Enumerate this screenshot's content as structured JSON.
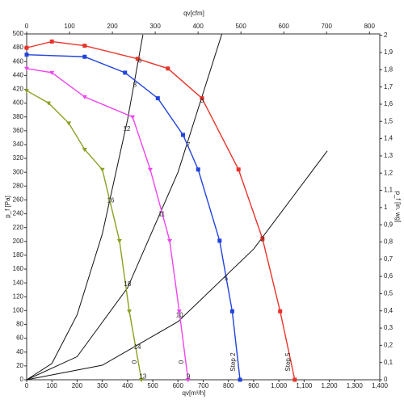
{
  "chart_data": {
    "type": "line",
    "x_label": "qv[m³/h]",
    "x2_label": "qv[cfm]",
    "y_label": "p_f [Pa]",
    "y2_label": "p_f [in. wg]",
    "xlim": [
      0,
      1400
    ],
    "xticks": [
      0,
      100,
      200,
      300,
      400,
      500,
      600,
      700,
      800,
      900,
      {
        "value": 1000,
        "label": "1,000"
      },
      {
        "value": 1100,
        "label": "1,100"
      },
      {
        "value": 1200,
        "label": "1,200"
      },
      {
        "value": 1300,
        "label": "1,300"
      },
      {
        "value": 1400,
        "label": "1,400"
      }
    ],
    "x2lim": [
      0,
      824
    ],
    "x2ticks": [
      0,
      100,
      200,
      300,
      400,
      500,
      600,
      700,
      800
    ],
    "ylim": [
      0,
      500
    ],
    "yticks": [
      0,
      20,
      40,
      60,
      80,
      100,
      120,
      140,
      160,
      180,
      200,
      220,
      240,
      260,
      280,
      300,
      320,
      340,
      360,
      380,
      400,
      420,
      440,
      460,
      480,
      500
    ],
    "y2lim": [
      0,
      2.008
    ],
    "y2ticks": [
      0,
      {
        "value": 0.1,
        "label": "0,1"
      },
      {
        "value": 0.2,
        "label": "0,2"
      },
      {
        "value": 0.3,
        "label": "0,3"
      },
      {
        "value": 0.4,
        "label": "0,4"
      },
      {
        "value": 0.5,
        "label": "0,5"
      },
      {
        "value": 0.6,
        "label": "0,6"
      },
      {
        "value": 0.7,
        "label": "0,7"
      },
      {
        "value": 0.8,
        "label": "0,8"
      },
      {
        "value": 0.9,
        "label": "0,9"
      },
      1,
      {
        "value": 1.1,
        "label": "1,1"
      },
      {
        "value": 1.2,
        "label": "1,2"
      },
      {
        "value": 1.3,
        "label": "1,3"
      },
      {
        "value": 1.4,
        "label": "1,4"
      },
      {
        "value": 1.5,
        "label": "1,5"
      },
      {
        "value": 1.6,
        "label": "1,6"
      },
      {
        "value": 1.7,
        "label": "1,7"
      },
      {
        "value": 1.8,
        "label": "1,8"
      },
      {
        "value": 1.9,
        "label": "1,9"
      },
      2
    ],
    "grid": false,
    "series": [
      {
        "name": "Step 5",
        "color": "#e8342a",
        "marker": "square",
        "x": [
          0,
          100,
          230,
          440,
          560,
          695,
          840,
          935,
          1005,
          1063
        ],
        "values": [
          480,
          489,
          483,
          464,
          450,
          407,
          304,
          204,
          99,
          0
        ]
      },
      {
        "name": "Step 2",
        "color": "#2244dd",
        "marker": "square",
        "x": [
          0,
          230,
          390,
          520,
          620,
          680,
          765,
          815,
          846
        ],
        "values": [
          470,
          467,
          444,
          407,
          354,
          304,
          201,
          99,
          0
        ]
      },
      {
        "name": "0",
        "color": "#ee44ee",
        "marker": "triangle",
        "x": [
          0,
          100,
          230,
          420,
          490,
          567,
          605,
          640
        ],
        "values": [
          450,
          444,
          409,
          380,
          304,
          201,
          99,
          0
        ]
      },
      {
        "name": "0",
        "color": "#8aa020",
        "marker": "triangle",
        "x": [
          0,
          87,
          167,
          230,
          300,
          368,
          407,
          455
        ],
        "values": [
          418,
          400,
          371,
          333,
          304,
          201,
          99,
          0
        ]
      }
    ],
    "system_curves": [
      {
        "color": "#111111",
        "x": [
          0,
          100,
          200,
          300,
          400,
          461
        ],
        "values": [
          0,
          23.5,
          93.9,
          211,
          376,
          499
        ]
      },
      {
        "color": "#111111",
        "x": [
          0,
          200,
          400,
          600,
          774
        ],
        "values": [
          0,
          33.4,
          133,
          300,
          500
        ]
      },
      {
        "color": "#111111",
        "x": [
          0,
          300,
          600,
          900,
          1192
        ],
        "values": [
          0,
          21,
          84,
          189,
          331
        ]
      }
    ],
    "point_labels": [
      {
        "label": "6",
        "x": 449,
        "y": 461
      },
      {
        "label": "8",
        "x": 429,
        "y": 426
      },
      {
        "label": "12",
        "x": 397,
        "y": 362
      },
      {
        "label": "16",
        "x": 333,
        "y": 259
      },
      {
        "label": "18",
        "x": 400,
        "y": 138
      },
      {
        "label": "14",
        "x": 439,
        "y": 47
      },
      {
        "label": "13",
        "x": 461,
        "y": 4
      },
      {
        "label": "3",
        "x": 695,
        "y": 403
      },
      {
        "label": "7",
        "x": 641,
        "y": 339
      },
      {
        "label": "11",
        "x": 535,
        "y": 239
      },
      {
        "label": "10",
        "x": 606,
        "y": 93
      },
      {
        "label": "5",
        "x": 791,
        "y": 146
      },
      {
        "label": "2",
        "x": 935,
        "y": 203
      },
      {
        "label": "9",
        "x": 641,
        "y": 4
      }
    ]
  }
}
